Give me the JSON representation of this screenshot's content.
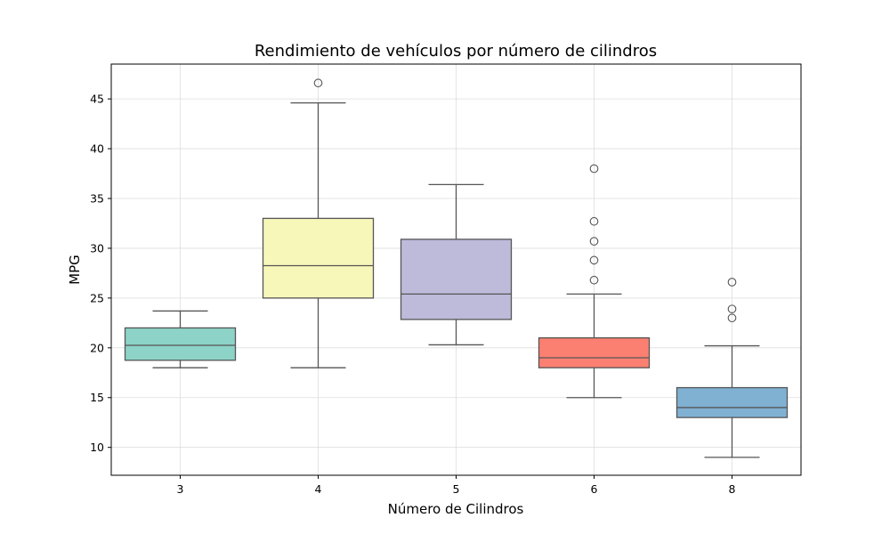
{
  "chart_data": {
    "type": "box",
    "title": "Rendimiento de vehículos por número de cilindros",
    "xlabel": "Número de Cilindros",
    "ylabel": "MPG",
    "ylim": [
      7.2,
      48.5
    ],
    "yticks": [
      10,
      15,
      20,
      25,
      30,
      35,
      40,
      45
    ],
    "grid": true,
    "categories": [
      "3",
      "4",
      "5",
      "6",
      "8"
    ],
    "series": [
      {
        "category": "3",
        "min": 18.0,
        "q1": 18.75,
        "median": 20.25,
        "q3": 22.0,
        "max": 23.7,
        "outliers": [],
        "color": "#8dd3c7"
      },
      {
        "category": "4",
        "min": 18.0,
        "q1": 25.0,
        "median": 28.25,
        "q3": 33.0,
        "max": 44.6,
        "outliers": [
          46.6
        ],
        "color": "#f8f7ba"
      },
      {
        "category": "5",
        "min": 20.3,
        "q1": 22.85,
        "median": 25.4,
        "q3": 30.9,
        "max": 36.4,
        "outliers": [],
        "color": "#bebada"
      },
      {
        "category": "6",
        "min": 15.0,
        "q1": 18.0,
        "median": 19.0,
        "q3": 21.0,
        "max": 25.4,
        "outliers": [
          26.8,
          28.8,
          30.7,
          32.7,
          38.0
        ],
        "color": "#fb8072"
      },
      {
        "category": "8",
        "min": 9.0,
        "q1": 13.0,
        "median": 14.0,
        "q3": 16.0,
        "max": 20.2,
        "outliers": [
          23.0,
          23.9,
          26.6
        ],
        "color": "#80b1d3"
      }
    ]
  }
}
